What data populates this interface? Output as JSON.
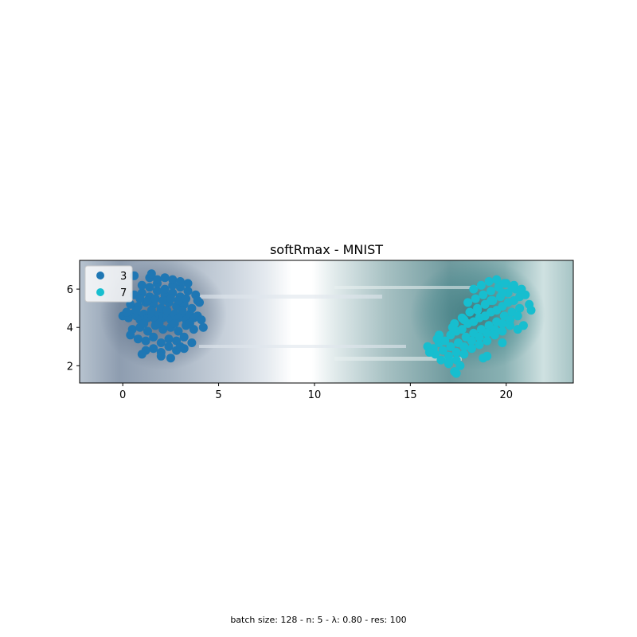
{
  "chart_data": {
    "type": "scatter",
    "title": "softRmax - MNIST",
    "xlabel": "",
    "ylabel": "",
    "xlim": [
      -2.25,
      23.5
    ],
    "ylim": [
      1.1,
      7.5
    ],
    "x_ticks": [
      0,
      5,
      10,
      15,
      20
    ],
    "y_ticks": [
      2,
      4,
      6
    ],
    "grid": false,
    "legend_position": "top-left",
    "background": "decision-region heatmap: slate blue-grey on the left (class 3), white boundary band near x≈10–11, teal-grey on the right (class 7), darker near each cluster",
    "series": [
      {
        "name": "3",
        "color": "#1f77b4",
        "x": [
          0.0,
          0.3,
          0.5,
          0.7,
          0.9,
          1.1,
          1.3,
          1.5,
          1.7,
          1.9,
          2.1,
          2.3,
          2.5,
          2.7,
          2.9,
          3.1,
          3.3,
          3.5,
          3.7,
          3.9,
          4.1,
          0.4,
          0.8,
          1.2,
          1.6,
          2.0,
          2.4,
          2.8,
          3.2,
          3.6,
          4.0,
          0.5,
          0.9,
          1.3,
          1.7,
          2.1,
          2.5,
          2.9,
          3.3,
          3.7,
          0.6,
          1.0,
          1.4,
          1.8,
          2.2,
          2.6,
          3.0,
          3.4,
          3.8,
          0.8,
          1.2,
          1.6,
          2.0,
          2.4,
          2.8,
          3.2,
          3.6,
          1.0,
          1.4,
          1.8,
          2.2,
          2.6,
          3.0,
          3.4,
          1.2,
          1.6,
          2.0,
          2.4,
          2.8,
          3.2,
          0.7,
          1.1,
          1.5,
          1.9,
          2.3,
          2.7,
          3.1,
          3.5,
          0.9,
          1.3,
          1.7,
          2.1,
          2.5,
          2.9,
          3.3,
          1.4,
          1.8,
          2.2,
          2.6,
          3.0,
          0.6,
          4.2,
          0.2,
          1.0,
          2.0,
          3.0,
          3.9,
          2.5,
          1.5,
          0.4
        ],
        "y": [
          4.6,
          4.5,
          4.7,
          4.6,
          4.4,
          4.7,
          4.5,
          4.6,
          4.4,
          4.7,
          4.5,
          4.6,
          4.4,
          4.7,
          4.5,
          4.6,
          4.4,
          4.7,
          4.5,
          4.6,
          4.4,
          5.2,
          5.1,
          5.3,
          5.2,
          5.0,
          5.3,
          5.1,
          5.2,
          5.0,
          5.3,
          3.9,
          4.0,
          3.8,
          4.1,
          3.9,
          4.0,
          3.8,
          4.1,
          3.9,
          5.7,
          5.8,
          5.6,
          5.9,
          5.7,
          5.8,
          5.6,
          5.9,
          5.7,
          3.4,
          3.3,
          3.5,
          3.2,
          3.4,
          3.3,
          3.5,
          3.2,
          6.2,
          6.1,
          6.3,
          6.0,
          6.2,
          6.1,
          6.3,
          2.8,
          2.9,
          2.7,
          3.0,
          2.8,
          2.9,
          4.9,
          4.2,
          4.9,
          4.2,
          4.9,
          4.2,
          4.9,
          4.2,
          5.5,
          5.4,
          5.5,
          5.4,
          5.5,
          5.4,
          5.5,
          6.6,
          6.5,
          6.6,
          6.5,
          6.4,
          6.7,
          4.0,
          4.8,
          2.6,
          2.5,
          3.0,
          5.4,
          2.4,
          6.8,
          3.6
        ]
      },
      {
        "name": "7",
        "color": "#17becf",
        "x": [
          15.9,
          16.2,
          16.5,
          16.8,
          17.1,
          17.4,
          17.7,
          18.0,
          18.3,
          18.6,
          18.9,
          19.2,
          19.5,
          19.8,
          20.1,
          20.4,
          20.7,
          21.0,
          21.3,
          16.3,
          16.7,
          17.1,
          17.5,
          17.9,
          18.3,
          18.7,
          19.1,
          19.5,
          19.9,
          20.3,
          20.7,
          16.6,
          17.0,
          17.4,
          17.8,
          18.2,
          18.6,
          19.0,
          19.4,
          19.8,
          20.2,
          20.6,
          17.0,
          17.4,
          17.8,
          18.2,
          18.6,
          19.0,
          19.4,
          19.8,
          20.2,
          17.3,
          17.7,
          18.1,
          18.5,
          18.9,
          19.3,
          19.7,
          20.1,
          20.5,
          18.0,
          18.4,
          18.8,
          19.2,
          19.6,
          20.0,
          20.4,
          20.8,
          18.3,
          18.7,
          19.1,
          19.5,
          19.9,
          20.3,
          16.5,
          17.2,
          17.8,
          18.5,
          19.2,
          19.8,
          17.3,
          17.4,
          17.6,
          18.8,
          19.8,
          20.9,
          21.2,
          16.0,
          16.4,
          17.0,
          19.0,
          20.6
        ],
        "y": [
          3.0,
          2.9,
          3.2,
          3.3,
          3.6,
          3.8,
          3.9,
          4.2,
          4.3,
          4.5,
          4.6,
          4.8,
          4.9,
          5.1,
          5.3,
          5.4,
          5.6,
          5.7,
          4.9,
          2.6,
          2.8,
          3.0,
          3.2,
          3.5,
          3.7,
          3.9,
          4.1,
          4.3,
          4.6,
          4.8,
          5.0,
          2.3,
          2.5,
          2.7,
          3.0,
          3.3,
          3.5,
          3.7,
          3.9,
          4.2,
          4.4,
          4.6,
          2.1,
          2.3,
          2.6,
          2.9,
          3.1,
          3.3,
          3.6,
          3.8,
          4.1,
          4.2,
          4.5,
          4.8,
          5.0,
          5.2,
          5.4,
          5.6,
          5.8,
          6.0,
          5.3,
          5.5,
          5.7,
          5.9,
          6.1,
          6.3,
          6.2,
          6.0,
          6.0,
          6.2,
          6.4,
          6.5,
          6.3,
          6.1,
          3.6,
          4.0,
          4.4,
          4.9,
          5.4,
          5.8,
          1.7,
          1.6,
          2.0,
          2.4,
          3.2,
          4.1,
          5.2,
          2.7,
          3.4,
          2.2,
          2.5,
          3.9
        ]
      }
    ]
  },
  "footer": {
    "caption": "batch size: 128 - n: 5 - λ: 0.80 - res: 100"
  }
}
